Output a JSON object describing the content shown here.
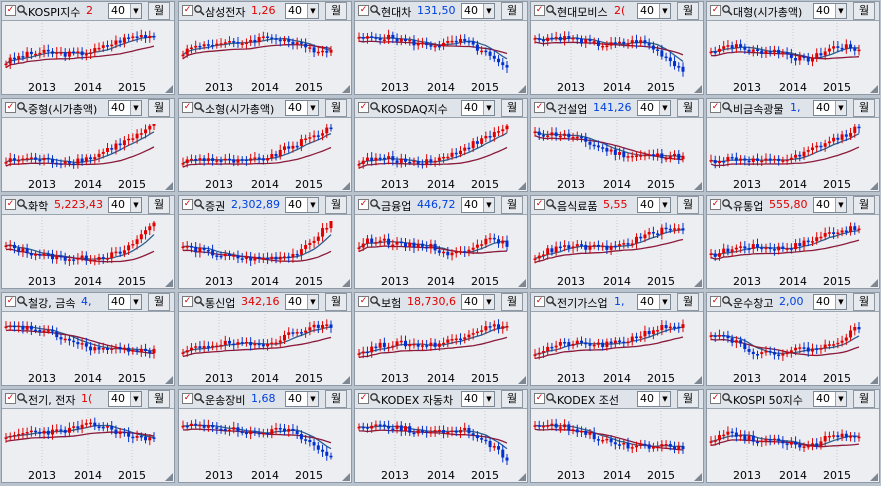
{
  "window": {
    "count_value": "40",
    "period_label": "월",
    "year_labels": [
      "2013",
      "2014",
      "2015"
    ]
  },
  "panels": [
    {
      "name": "KOSPI지수",
      "value": "2",
      "color": "red",
      "shape": "rise"
    },
    {
      "name": "삼성전자",
      "value": "1,26",
      "color": "red",
      "shape": "hump"
    },
    {
      "name": "현대차",
      "value": "131,50",
      "color": "blue",
      "shape": "fall"
    },
    {
      "name": "현대모비스",
      "value": "2(",
      "color": "red",
      "shape": "fall"
    },
    {
      "name": "대형(시가총액)",
      "value": "",
      "color": "red",
      "shape": "flat"
    },
    {
      "name": "중형(시가총액)",
      "value": "",
      "color": "red",
      "shape": "surge"
    },
    {
      "name": "소형(시가총액)",
      "value": "",
      "color": "red",
      "shape": "surge"
    },
    {
      "name": "KOSDAQ지수",
      "value": "",
      "color": "red",
      "shape": "surge"
    },
    {
      "name": "건설업",
      "value": "141,26",
      "color": "blue",
      "shape": "decline"
    },
    {
      "name": "비금속광물",
      "value": "1,",
      "color": "blue",
      "shape": "surge"
    },
    {
      "name": "화학",
      "value": "5,223,43",
      "color": "red",
      "shape": "dipsurge"
    },
    {
      "name": "증권",
      "value": "2,302,89",
      "color": "blue",
      "shape": "dipsurge"
    },
    {
      "name": "금융업",
      "value": "446,72",
      "color": "blue",
      "shape": "flat"
    },
    {
      "name": "음식료품",
      "value": "5,55",
      "color": "red",
      "shape": "rise"
    },
    {
      "name": "유통업",
      "value": "555,80",
      "color": "red",
      "shape": "rise"
    },
    {
      "name": "철강, 금속",
      "value": "4,",
      "color": "blue",
      "shape": "decline"
    },
    {
      "name": "통신업",
      "value": "342,16",
      "color": "red",
      "shape": "rise"
    },
    {
      "name": "보험",
      "value": "18,730,6",
      "color": "red",
      "shape": "rise"
    },
    {
      "name": "전기가스업",
      "value": "1,",
      "color": "blue",
      "shape": "rise"
    },
    {
      "name": "운수창고",
      "value": "2,00",
      "color": "blue",
      "shape": "dip"
    },
    {
      "name": "전기, 전자",
      "value": "1(",
      "color": "red",
      "shape": "hump"
    },
    {
      "name": "운송장비",
      "value": "1,68",
      "color": "blue",
      "shape": "fall"
    },
    {
      "name": "KODEX 자동차",
      "value": "",
      "color": "red",
      "shape": "fall"
    },
    {
      "name": "KODEX 조선",
      "value": "",
      "color": "red",
      "shape": "decline"
    },
    {
      "name": "KOSPI 50지수",
      "value": "",
      "color": "red",
      "shape": "flat"
    }
  ]
}
